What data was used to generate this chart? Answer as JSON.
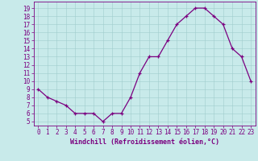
{
  "x_values": [
    0,
    1,
    2,
    3,
    4,
    5,
    6,
    7,
    8,
    9,
    10,
    11,
    12,
    13,
    14,
    15,
    16,
    17,
    18,
    19,
    20,
    21,
    22,
    23
  ],
  "y_values": [
    9,
    8,
    7.5,
    7,
    6,
    6,
    6,
    5,
    6,
    6,
    8,
    11,
    13,
    13,
    15,
    17,
    18,
    19,
    19,
    18,
    17,
    14,
    13,
    10
  ],
  "line_color": "#7b0080",
  "marker": "+",
  "bg_color": "#c8eaea",
  "grid_color": "#a0cccc",
  "xlabel": "Windchill (Refroidissement éolien,°C)",
  "yticks": [
    5,
    6,
    7,
    8,
    9,
    10,
    11,
    12,
    13,
    14,
    15,
    16,
    17,
    18,
    19
  ],
  "ylim": [
    4.5,
    19.8
  ],
  "xlim": [
    -0.5,
    23.5
  ],
  "tick_fontsize": 5.5,
  "xlabel_fontsize": 6.0,
  "markersize": 3.5,
  "linewidth": 0.9
}
